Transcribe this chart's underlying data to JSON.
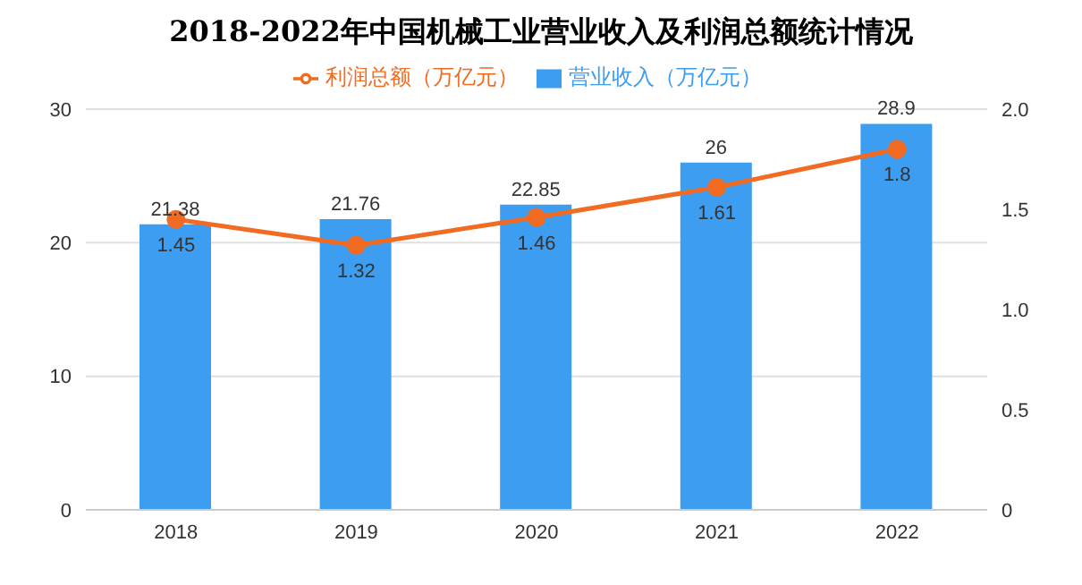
{
  "chart_data": {
    "type": "bar",
    "title": "2018-2022年中国机械工业营业收入及利润总额统计情况",
    "categories": [
      "2018",
      "2019",
      "2020",
      "2021",
      "2022"
    ],
    "series": [
      {
        "name": "营业收入（万亿元）",
        "color": "#3d9df0",
        "values": [
          21.38,
          21.76,
          22.85,
          26,
          28.9
        ]
      },
      {
        "name": "利润总额（万亿元）",
        "type": "line",
        "axis": "y2",
        "color": "#f26b22",
        "values": [
          1.45,
          1.32,
          1.46,
          1.61,
          1.8
        ]
      }
    ],
    "ylim": [
      0,
      30
    ],
    "yticks": [
      0,
      10,
      20,
      30
    ],
    "y2lim": [
      0,
      2
    ],
    "y2ticks": [
      0,
      0.5,
      {
        "value": 1,
        "label": "1.0"
      },
      1.5,
      {
        "value": 2,
        "label": "2.0"
      }
    ],
    "grid": "y",
    "legend": "top",
    "marker": "circle",
    "line_style": "solid",
    "data_labels": true
  }
}
